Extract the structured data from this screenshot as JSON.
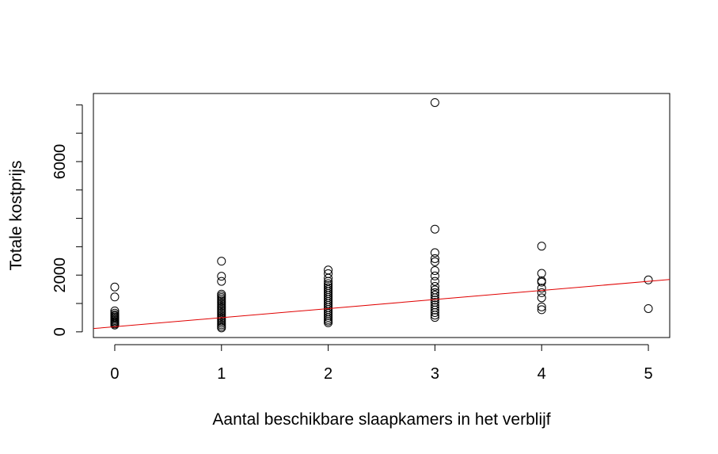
{
  "chart_data": {
    "type": "scatter",
    "title": "",
    "xlabel": "Aantal beschikbare slaapkamers in het verblijf",
    "ylabel": "Totale kostprijs",
    "xlim": [
      -0.2,
      5.2
    ],
    "ylim": [
      -200,
      8400
    ],
    "x_ticks": [
      0,
      1,
      2,
      3,
      4,
      5
    ],
    "x_tick_labels": [
      "0",
      "1",
      "2",
      "3",
      "4",
      "5"
    ],
    "y_ticks": [
      0,
      1000,
      2000,
      3000,
      4000,
      5000,
      6000,
      7000,
      8000
    ],
    "y_tick_labels": [
      "0",
      "",
      "2000",
      "",
      "",
      "",
      "6000",
      "",
      ""
    ],
    "grid": false,
    "legend": "none",
    "point_color": "#000000",
    "line_color": "#e00000",
    "regression_line": {
      "intercept": 180,
      "slope": 320
    },
    "points": [
      [
        0,
        1580
      ],
      [
        0,
        1230
      ],
      [
        0,
        740
      ],
      [
        0,
        660
      ],
      [
        0,
        600
      ],
      [
        0,
        560
      ],
      [
        0,
        520
      ],
      [
        0,
        480
      ],
      [
        0,
        440
      ],
      [
        0,
        400
      ],
      [
        0,
        360
      ],
      [
        0,
        320
      ],
      [
        0,
        280
      ],
      [
        0,
        240
      ],
      [
        1,
        2490
      ],
      [
        1,
        1960
      ],
      [
        1,
        1780
      ],
      [
        1,
        1330
      ],
      [
        1,
        1270
      ],
      [
        1,
        1210
      ],
      [
        1,
        1150
      ],
      [
        1,
        1090
      ],
      [
        1,
        1030
      ],
      [
        1,
        970
      ],
      [
        1,
        910
      ],
      [
        1,
        850
      ],
      [
        1,
        790
      ],
      [
        1,
        730
      ],
      [
        1,
        670
      ],
      [
        1,
        610
      ],
      [
        1,
        550
      ],
      [
        1,
        490
      ],
      [
        1,
        430
      ],
      [
        1,
        370
      ],
      [
        1,
        310
      ],
      [
        1,
        250
      ],
      [
        1,
        190
      ],
      [
        1,
        140
      ],
      [
        2,
        2180
      ],
      [
        2,
        2050
      ],
      [
        2,
        1890
      ],
      [
        2,
        1780
      ],
      [
        2,
        1700
      ],
      [
        2,
        1630
      ],
      [
        2,
        1560
      ],
      [
        2,
        1490
      ],
      [
        2,
        1420
      ],
      [
        2,
        1350
      ],
      [
        2,
        1280
      ],
      [
        2,
        1210
      ],
      [
        2,
        1140
      ],
      [
        2,
        1070
      ],
      [
        2,
        1000
      ],
      [
        2,
        930
      ],
      [
        2,
        860
      ],
      [
        2,
        790
      ],
      [
        2,
        720
      ],
      [
        2,
        650
      ],
      [
        2,
        580
      ],
      [
        2,
        510
      ],
      [
        2,
        440
      ],
      [
        2,
        380
      ],
      [
        2,
        320
      ],
      [
        3,
        8080
      ],
      [
        3,
        3620
      ],
      [
        3,
        2790
      ],
      [
        3,
        2580
      ],
      [
        3,
        2470
      ],
      [
        3,
        2160
      ],
      [
        3,
        1970
      ],
      [
        3,
        1780
      ],
      [
        3,
        1600
      ],
      [
        3,
        1480
      ],
      [
        3,
        1380
      ],
      [
        3,
        1290
      ],
      [
        3,
        1200
      ],
      [
        3,
        1120
      ],
      [
        3,
        1040
      ],
      [
        3,
        950
      ],
      [
        3,
        860
      ],
      [
        3,
        770
      ],
      [
        3,
        680
      ],
      [
        3,
        590
      ],
      [
        3,
        510
      ],
      [
        4,
        3020
      ],
      [
        4,
        2060
      ],
      [
        4,
        1800
      ],
      [
        4,
        1750
      ],
      [
        4,
        1540
      ],
      [
        4,
        1380
      ],
      [
        4,
        1200
      ],
      [
        4,
        880
      ],
      [
        4,
        780
      ],
      [
        5,
        1830
      ],
      [
        5,
        820
      ]
    ]
  }
}
